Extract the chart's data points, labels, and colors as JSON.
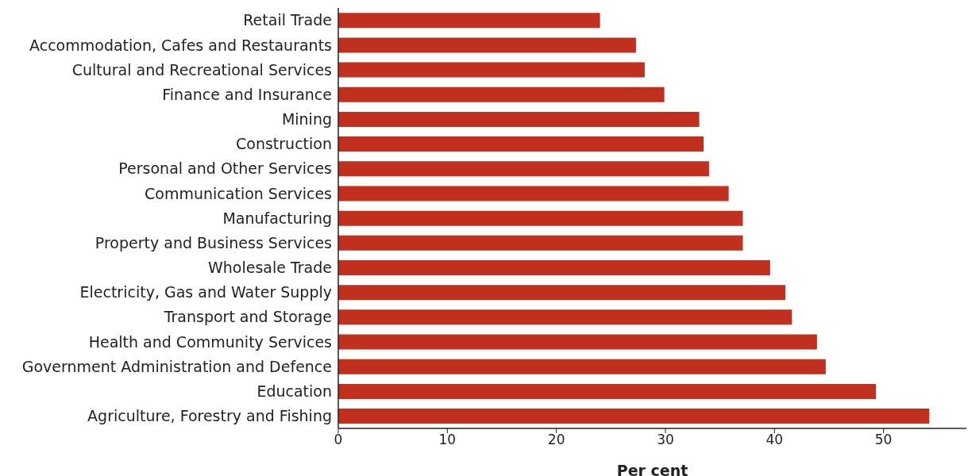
{
  "chart_data": {
    "type": "bar",
    "orientation": "horizontal",
    "xlabel": "Per cent",
    "categories": [
      "Retail Trade",
      "Accommodation, Cafes and Restaurants",
      "Cultural and Recreational Services",
      "Finance and Insurance",
      "Mining",
      "Construction",
      "Personal and Other Services",
      "Communication Services",
      "Manufacturing",
      "Property and Business Services",
      "Wholesale Trade",
      "Electricity, Gas and Water Supply",
      "Transport and Storage",
      "Health and Community Services",
      "Government Administration and Defence",
      "Education",
      "Agriculture, Forestry and Fishing"
    ],
    "values": [
      24.0,
      27.3,
      28.1,
      29.9,
      33.1,
      33.5,
      34.0,
      35.8,
      37.1,
      37.1,
      39.6,
      41.0,
      41.6,
      43.9,
      44.7,
      49.3,
      54.2
    ],
    "color": "#c1301f",
    "xlim": [
      0,
      57.6
    ],
    "xticks": [
      0,
      10,
      20,
      30,
      40,
      50
    ],
    "grid": false,
    "legend": false
  }
}
